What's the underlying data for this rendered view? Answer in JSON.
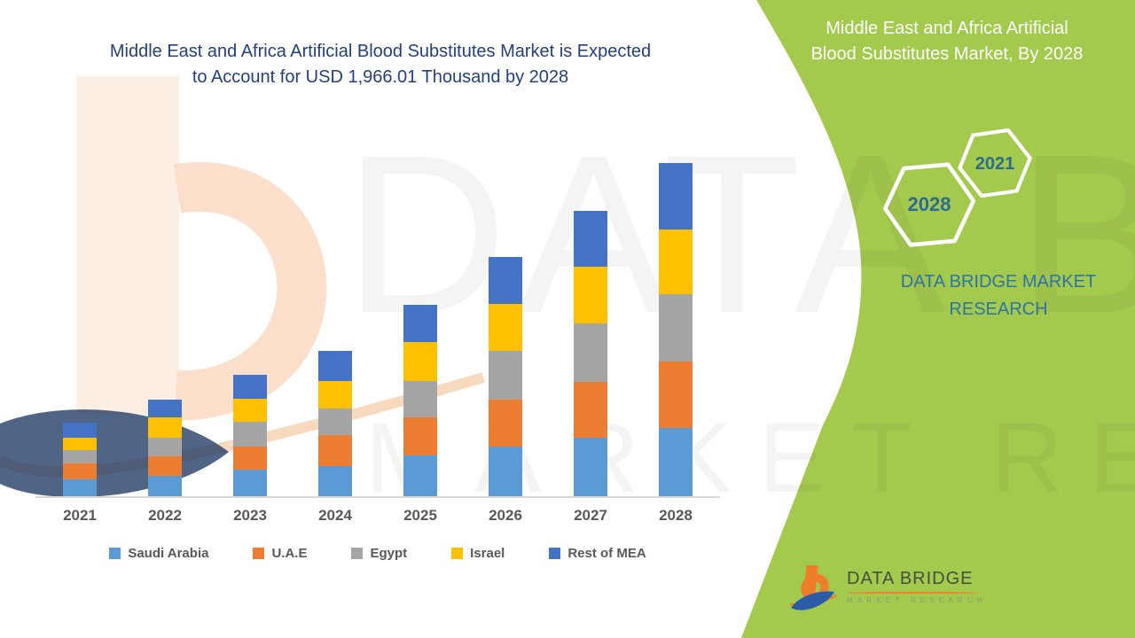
{
  "colors": {
    "green": "#a3c94d",
    "headline": "#24417a",
    "hexagon_text": "#2d6b90",
    "brand_blue": "#2e74a5",
    "axis_text": "#595959"
  },
  "header": {
    "title_lines": [
      "Middle East and Africa Artificial Blood Substitutes Market is Expected",
      "to Account for USD 1,966.01 Thousand by 2028"
    ]
  },
  "right_panel": {
    "title_lines": [
      "Middle East and Africa Artificial",
      "Blood Substitutes Market, By 2028"
    ],
    "hexagon_labels": [
      "2021",
      "2028"
    ],
    "brand_lines": [
      "DATA BRIDGE MARKET",
      "RESEARCH"
    ]
  },
  "footer_logo": {
    "name": "DATA BRIDGE",
    "tagline": "MARKET RESEARCH"
  },
  "watermark": {
    "line1": "DATA BRIDGE",
    "line2": "MARKET RESEARCH"
  },
  "chart_data": {
    "type": "bar",
    "stacked": true,
    "title": "Middle East and Africa Artificial Blood Substitutes Market is Expected to Account for USD 1,966.01 Thousand by 2028",
    "unit": "USD Thousand",
    "categories": [
      "2021",
      "2022",
      "2023",
      "2024",
      "2025",
      "2026",
      "2027",
      "2028"
    ],
    "series": [
      {
        "name": "Saudi Arabia",
        "color": "#5B9BD5",
        "values": [
          101,
          122,
          156,
          179,
          239,
          291,
          343,
          404
        ]
      },
      {
        "name": "U.A.E",
        "color": "#ED7D31",
        "values": [
          95,
          114,
          135,
          182,
          225,
          280,
          332,
          392
        ]
      },
      {
        "name": "Egypt",
        "color": "#A5A5A5",
        "values": [
          78,
          107,
          148,
          159,
          216,
          286,
          343,
          395
        ]
      },
      {
        "name": "Israel",
        "color": "#FFC000",
        "values": [
          69,
          122,
          138,
          161,
          228,
          277,
          337,
          383
        ]
      },
      {
        "name": "Rest of MEA",
        "color": "#4472C4",
        "values": [
          90,
          107,
          139,
          177,
          222,
          277,
          329,
          392.01
        ]
      }
    ],
    "total_2028": 1966.01,
    "ylim": [
      0,
      1966.01
    ],
    "grid": false,
    "legend_position": "bottom",
    "xlabel": "",
    "ylabel": ""
  }
}
